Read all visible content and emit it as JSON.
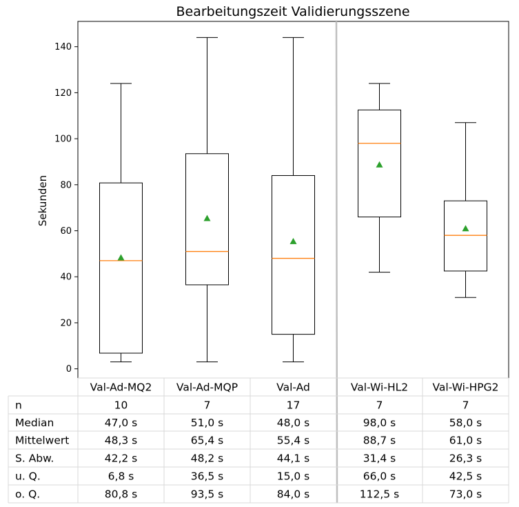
{
  "chart_data": {
    "type": "box",
    "title": "Bearbeitungszeit Validierungsszene",
    "ylabel": "Sekunden",
    "xlabel": "",
    "ylim": [
      -4,
      151
    ],
    "yticks": [
      0,
      20,
      40,
      60,
      80,
      100,
      120,
      140
    ],
    "categories": [
      "Val-Ad-MQ2",
      "Val-Ad-MQP",
      "Val-Ad",
      "Val-Wi-HL2",
      "Val-Wi-HPG2"
    ],
    "boxes": [
      {
        "name": "Val-Ad-MQ2",
        "whisker_low": 3,
        "q1": 6.8,
        "median": 47.0,
        "mean": 48.3,
        "q3": 80.8,
        "whisker_high": 124
      },
      {
        "name": "Val-Ad-MQP",
        "whisker_low": 3,
        "q1": 36.5,
        "median": 51.0,
        "mean": 65.4,
        "q3": 93.5,
        "whisker_high": 144
      },
      {
        "name": "Val-Ad",
        "whisker_low": 3,
        "q1": 15.0,
        "median": 48.0,
        "mean": 55.4,
        "q3": 84.0,
        "whisker_high": 144
      },
      {
        "name": "Val-Wi-HL2",
        "whisker_low": 42,
        "q1": 66.0,
        "median": 98.0,
        "mean": 88.7,
        "q3": 112.5,
        "whisker_high": 124
      },
      {
        "name": "Val-Wi-HPG2",
        "whisker_low": 31,
        "q1": 42.5,
        "median": 58.0,
        "mean": 61.0,
        "q3": 73.0,
        "whisker_high": 107
      }
    ],
    "table": {
      "row_labels": [
        "n",
        "Median",
        "Mittelwert",
        "S. Abw.",
        "u. Q.",
        "o. Q."
      ],
      "rows": [
        [
          "10",
          "7",
          "17",
          "7",
          "7"
        ],
        [
          "47,0 s",
          "51,0 s",
          "48,0 s",
          "98,0 s",
          "58,0 s"
        ],
        [
          "48,3 s",
          "65,4 s",
          "55,4 s",
          "88,7 s",
          "61,0 s"
        ],
        [
          "42,2 s",
          "48,2 s",
          "44,1 s",
          "31,4 s",
          "26,3 s"
        ],
        [
          "6,8 s",
          "36,5 s",
          "15,0 s",
          "66,0 s",
          "42,5 s"
        ],
        [
          "80,8 s",
          "93,5 s",
          "84,0 s",
          "112,5 s",
          "73,0 s"
        ]
      ]
    },
    "colors": {
      "median": "#ff7f0e",
      "mean": "#2ca02c",
      "box": "#000000",
      "grid": "#d9d9d9",
      "separator": "#bfbfbf"
    }
  }
}
